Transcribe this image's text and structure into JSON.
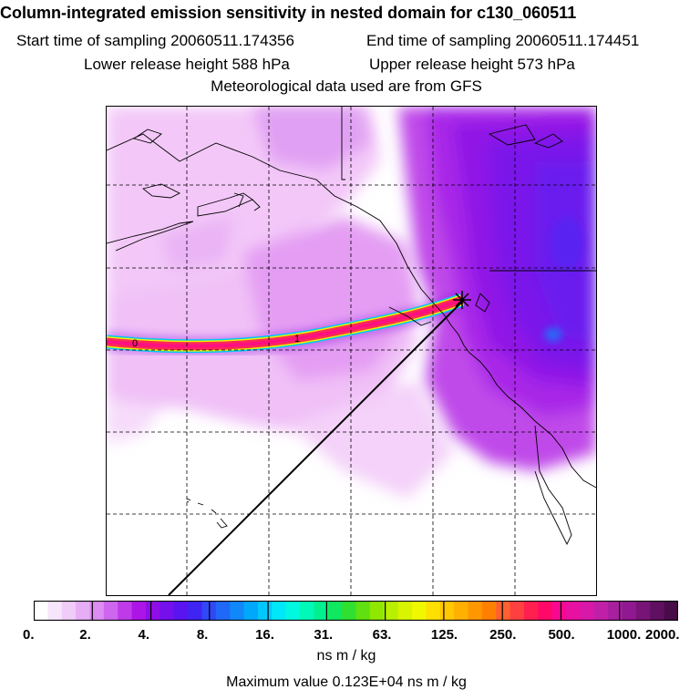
{
  "header": {
    "title": "Column-integrated emission sensitivity in nested domain for c130_060511",
    "start_time": "Start time of sampling 20060511.174356",
    "end_time": "End time of sampling 20060511.174451",
    "lower_height": "Lower release height  588 hPa",
    "upper_height": "Upper release height  573 hPa",
    "met_data": "Meteorological data used are from GFS"
  },
  "map": {
    "plume_labels": [
      "0",
      "1"
    ],
    "release_marker": "release-point-star"
  },
  "colorbar": {
    "tick_labels": [
      "0.",
      "2.",
      "4.",
      "8.",
      "16.",
      "31.",
      "63.",
      "125.",
      "250.",
      "500.",
      "1000.",
      "2000."
    ],
    "colors": [
      "#ffffff",
      "#f7e6fb",
      "#f0ccf8",
      "#e7aef6",
      "#dc8cf3",
      "#cf66ef",
      "#bf3bea",
      "#ad14e6",
      "#8f0ee8",
      "#7410ec",
      "#5a14f0",
      "#4024f3",
      "#3048f6",
      "#2068f8",
      "#1088fa",
      "#00a8fc",
      "#00c8fc",
      "#00e8f8",
      "#00f8e0",
      "#00f8b8",
      "#00f090",
      "#10e860",
      "#30e030",
      "#60e010",
      "#90e800",
      "#b8f000",
      "#d8f400",
      "#f0f800",
      "#ffe000",
      "#ffc800",
      "#ffb000",
      "#ff9800",
      "#ff8000",
      "#ff6030",
      "#ff4040",
      "#ff2050",
      "#ff0868",
      "#f80890",
      "#e810a0",
      "#d818a8",
      "#c020a8",
      "#a820a0",
      "#901890",
      "#781478",
      "#601060",
      "#480c48"
    ],
    "units": "ns m / kg"
  },
  "footer": {
    "max_value": "Maximum value  0.123E+04 ns m / kg"
  }
}
